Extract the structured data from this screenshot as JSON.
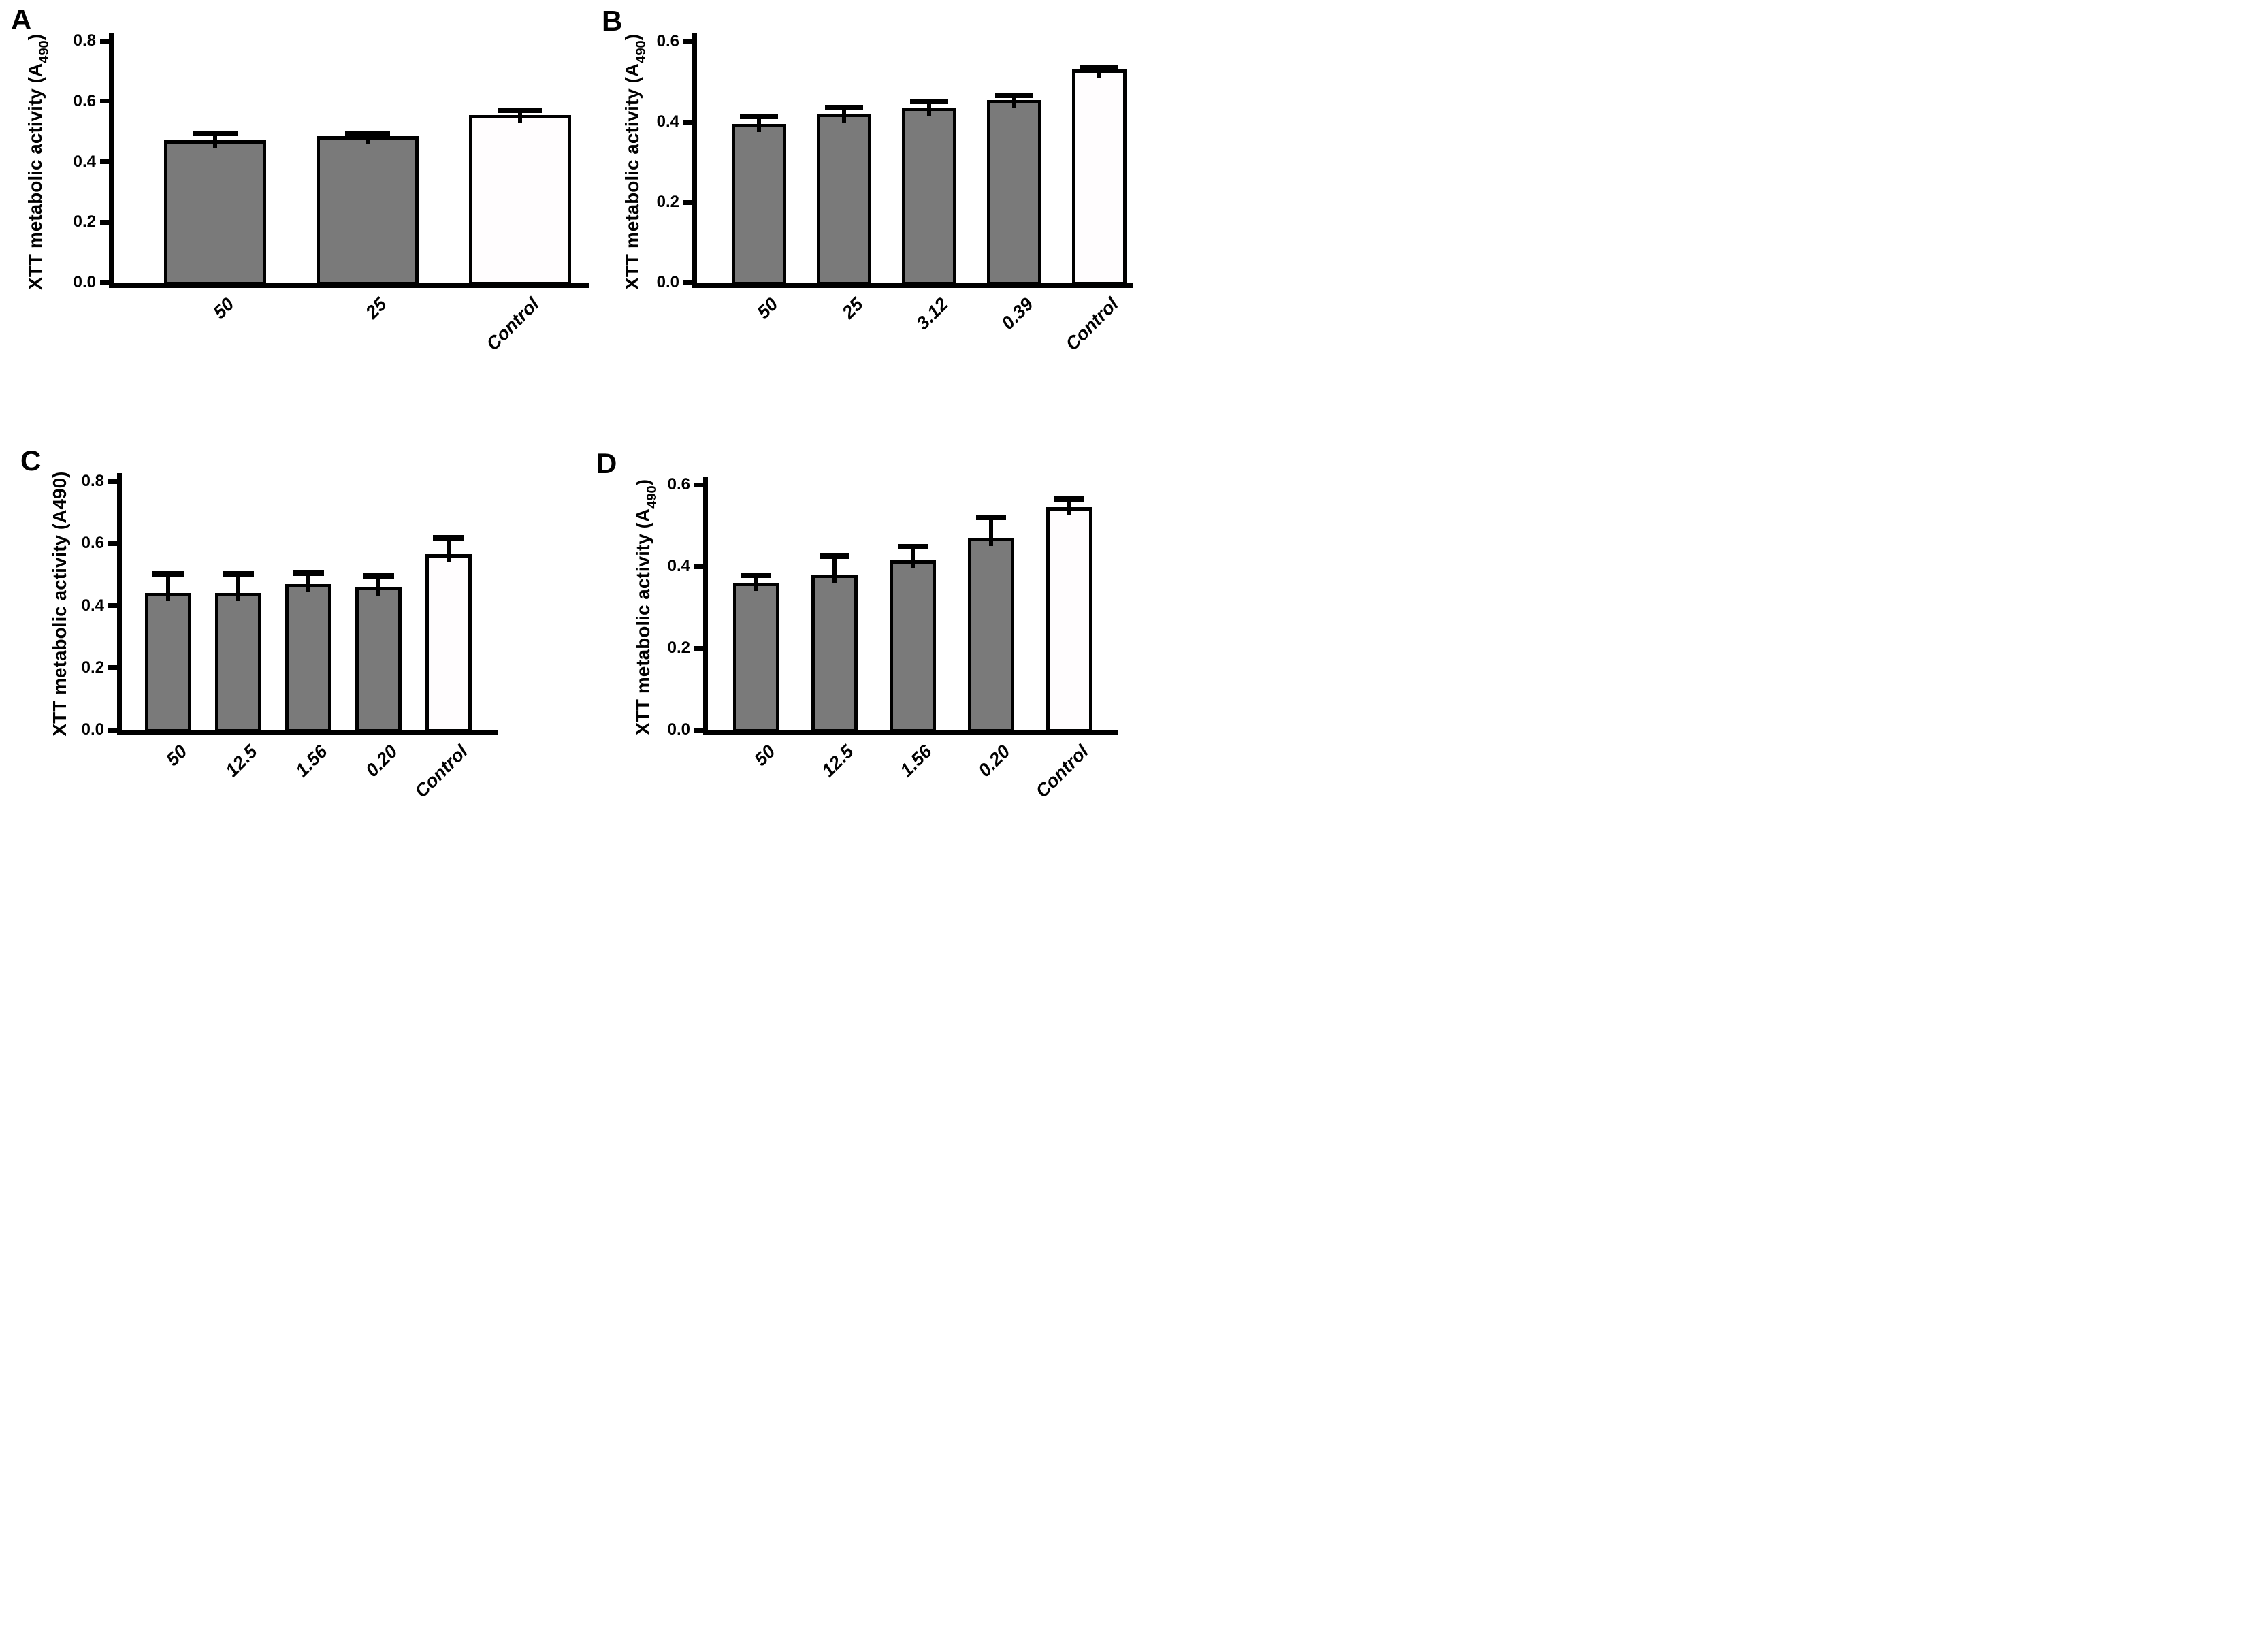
{
  "figure": {
    "background": "#ffffff",
    "colors": {
      "bar_gray": "#7a7a7a",
      "bar_control": "#fffdfe",
      "stroke": "#000000"
    }
  },
  "chart_data": [
    {
      "panel_label": "A",
      "type": "bar",
      "ylabel_pre": "XTT metabolic activity (A",
      "ylabel_sub": "490",
      "ylabel_post": ")",
      "ylabel_subscript": true,
      "ylim": [
        0,
        0.8
      ],
      "yticks": [
        "0.0",
        "0.2",
        "0.4",
        "0.6",
        "0.8"
      ],
      "categories": [
        "50",
        "25",
        "Control"
      ],
      "values": [
        0.47,
        0.485,
        0.555
      ],
      "errors_plus": [
        0.032,
        0.017,
        0.025
      ],
      "bar_styles": [
        "gray",
        "gray",
        "control"
      ],
      "grid": false,
      "legend": "none",
      "error_bars": "upper-sd-with-cap"
    },
    {
      "panel_label": "B",
      "type": "bar",
      "ylabel_pre": "XTT metabolic activity (A",
      "ylabel_sub": "490",
      "ylabel_post": ")",
      "ylabel_subscript": true,
      "ylim": [
        0,
        0.6
      ],
      "yticks": [
        "0.0",
        "0.2",
        "0.4",
        "0.6"
      ],
      "categories": [
        "50",
        "25",
        "3.12",
        "0.39",
        "Control"
      ],
      "values": [
        0.395,
        0.42,
        0.435,
        0.455,
        0.53
      ],
      "errors_plus": [
        0.026,
        0.023,
        0.022,
        0.018,
        0.013
      ],
      "bar_styles": [
        "gray",
        "gray",
        "gray",
        "gray",
        "control"
      ],
      "grid": false,
      "legend": "none",
      "error_bars": "upper-sd-with-cap"
    },
    {
      "panel_label": "C",
      "type": "bar",
      "ylabel_pre": "XTT metabolic activity (A",
      "ylabel_sub": "490",
      "ylabel_post": ")",
      "ylabel_subscript": false,
      "ylim": [
        0,
        0.8
      ],
      "yticks": [
        "0.0",
        "0.2",
        "0.4",
        "0.6",
        "0.8"
      ],
      "categories": [
        "50",
        "12.5",
        "1.56",
        "0.20",
        "Control"
      ],
      "values": [
        0.44,
        0.44,
        0.47,
        0.46,
        0.565
      ],
      "errors_plus": [
        0.07,
        0.07,
        0.042,
        0.045,
        0.062
      ],
      "bar_styles": [
        "gray",
        "gray",
        "gray",
        "gray",
        "control"
      ],
      "grid": false,
      "legend": "none",
      "error_bars": "upper-sd-with-cap"
    },
    {
      "panel_label": "D",
      "type": "bar",
      "ylabel_pre": "XTT metabolic activity (A",
      "ylabel_sub": "490",
      "ylabel_post": ")",
      "ylabel_subscript": true,
      "ylim": [
        0,
        0.6
      ],
      "yticks": [
        "0.0",
        "0.2",
        "0.4",
        "0.6"
      ],
      "categories": [
        "50",
        "12.5",
        "1.56",
        "0.20",
        "Control"
      ],
      "values": [
        0.36,
        0.38,
        0.415,
        0.47,
        0.545
      ],
      "errors_plus": [
        0.025,
        0.052,
        0.04,
        0.057,
        0.027
      ],
      "bar_styles": [
        "gray",
        "gray",
        "gray",
        "gray",
        "control"
      ],
      "grid": false,
      "legend": "none",
      "error_bars": "upper-sd-with-cap"
    }
  ]
}
